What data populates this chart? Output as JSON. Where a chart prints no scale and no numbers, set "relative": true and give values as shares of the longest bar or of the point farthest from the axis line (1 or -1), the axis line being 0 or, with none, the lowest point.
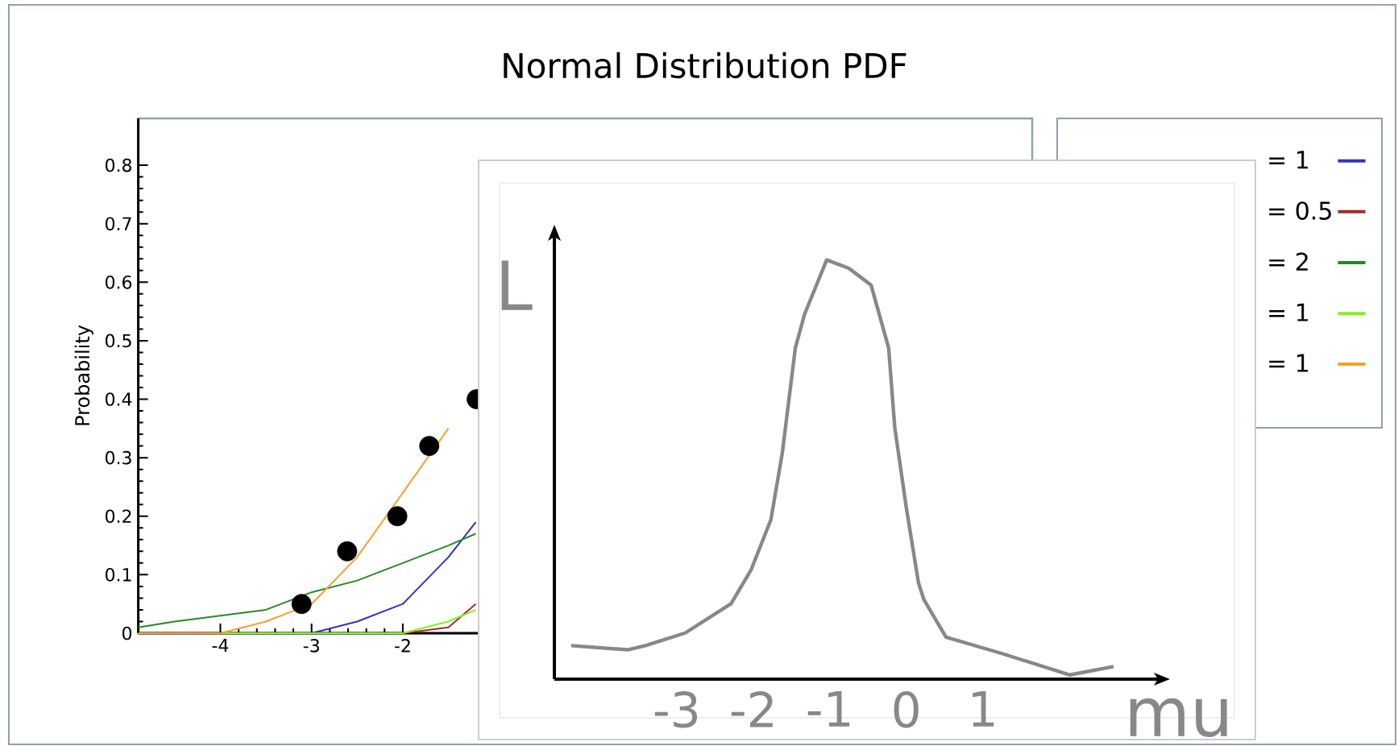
{
  "chart_data": [
    {
      "type": "line",
      "title": "Normal Distribution PDF",
      "ylabel": "Probability",
      "x": [
        -4.9,
        -4.5,
        -4,
        -3.5,
        -3,
        -2.5,
        -2,
        -1.5,
        -1.2
      ],
      "xlim": [
        -4.9,
        4.9
      ],
      "ylim": [
        0,
        0.88
      ],
      "xticks": [
        -4,
        -3,
        -2
      ],
      "yticks": [
        0,
        0.1,
        0.2,
        0.3,
        0.4,
        0.5,
        0.6,
        0.7,
        0.8
      ],
      "legend": "right",
      "line_style": "solid",
      "grid": false,
      "series": [
        {
          "name": "= 1",
          "color": "#3333bb",
          "values": [
            null,
            null,
            null,
            0,
            0,
            0.02,
            0.05,
            0.13,
            0.19
          ]
        },
        {
          "name": "= 0.5",
          "color": "#a52a2a",
          "values": [
            null,
            null,
            null,
            null,
            null,
            null,
            0,
            0.01,
            0.05
          ]
        },
        {
          "name": "= 2",
          "color": "#228b22",
          "values": [
            0.01,
            0.02,
            0.03,
            0.04,
            0.07,
            0.09,
            0.12,
            0.15,
            0.17
          ]
        },
        {
          "name": "= 1",
          "color": "#88ee22",
          "values": [
            0,
            0,
            0,
            0,
            0,
            0,
            0,
            0.02,
            0.04
          ]
        },
        {
          "name": "= 1",
          "color": "#f5a030",
          "values": [
            0,
            0,
            0,
            0.02,
            0.05,
            0.13,
            0.24,
            0.35,
            null
          ]
        },
        {
          "type": "scatter",
          "color": "#000000",
          "x": [
            -3.11,
            -2.61,
            -2.06,
            -1.71,
            -1.19
          ],
          "values": [
            0.05,
            0.14,
            0.2,
            0.32,
            0.4
          ]
        }
      ]
    },
    {
      "type": "line",
      "relative": true,
      "xlabel": "mu",
      "ylabel": "L",
      "xlim": [
        -4.6,
        3.3
      ],
      "xticks": [
        -3,
        -2,
        -1,
        0,
        1
      ],
      "line_style": "solid",
      "legend": false,
      "series": [
        {
          "color": "#888888",
          "x": [
            -4.38,
            -3.64,
            -3.41,
            -2.89,
            -2.29,
            -2.03,
            -1.77,
            -1.62,
            -1.45,
            -1.33,
            -1.04,
            -0.75,
            -0.46,
            -0.23,
            -0.15,
            0.0,
            0.16,
            0.23,
            0.52,
            1.27,
            2.14,
            2.71
          ],
          "values": [
            0.08,
            0.07,
            0.08,
            0.11,
            0.18,
            0.26,
            0.38,
            0.54,
            0.79,
            0.87,
            1.0,
            0.98,
            0.94,
            0.79,
            0.6,
            0.41,
            0.23,
            0.19,
            0.1,
            0.06,
            0.01,
            0.03
          ]
        }
      ]
    }
  ]
}
